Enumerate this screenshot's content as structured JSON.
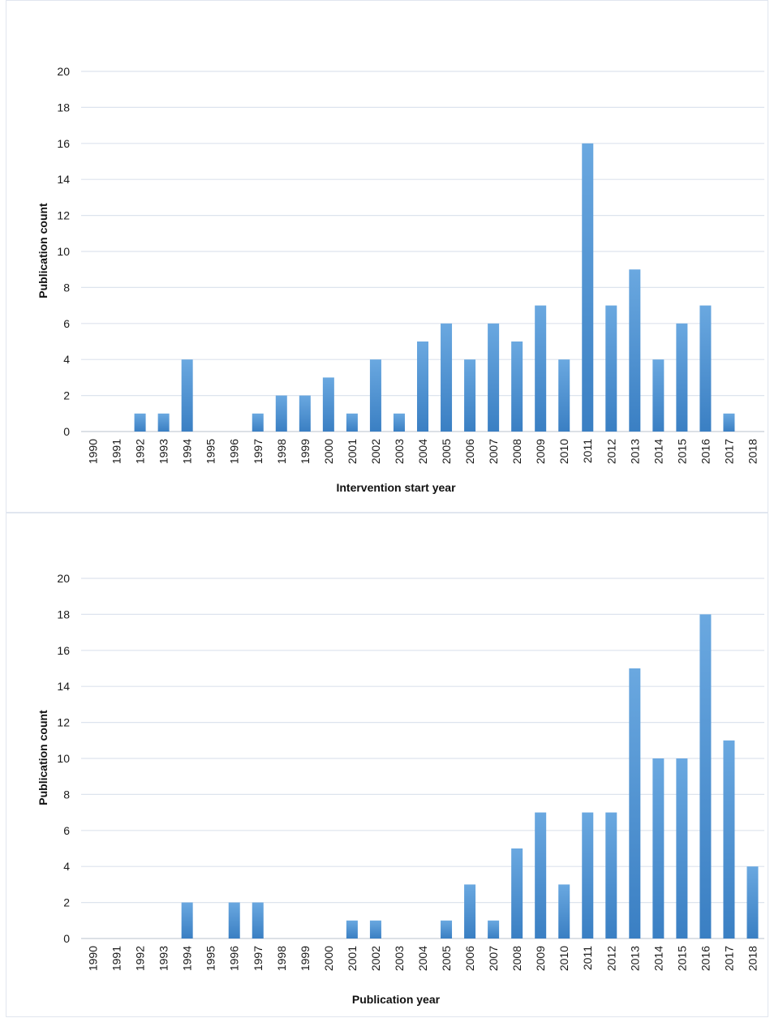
{
  "colors": {
    "bar": "#4a90d2",
    "bar_dark": "#3a7fc3",
    "grid": "#dde4ee",
    "axis": "#c8ced8"
  },
  "chart_data": [
    {
      "type": "bar",
      "title": "",
      "xlabel": "Intervention start year",
      "ylabel": "Publication count",
      "ylim": [
        0,
        20
      ],
      "yticks": [
        "0",
        "2",
        "4",
        "6",
        "8",
        "10",
        "12",
        "14",
        "16",
        "18",
        "20"
      ],
      "grid": true,
      "categories": [
        "1990",
        "1991",
        "1992",
        "1993",
        "1994",
        "1995",
        "1996",
        "1997",
        "1998",
        "1999",
        "2000",
        "2001",
        "2002",
        "2003",
        "2004",
        "2005",
        "2006",
        "2007",
        "2008",
        "2009",
        "2010",
        "2011",
        "2012",
        "2013",
        "2014",
        "2015",
        "2016",
        "2017",
        "2018"
      ],
      "values": [
        0,
        0,
        1,
        1,
        4,
        0,
        0,
        1,
        2,
        2,
        3,
        1,
        4,
        1,
        5,
        6,
        4,
        6,
        5,
        7,
        4,
        16,
        7,
        9,
        4,
        6,
        7,
        1,
        0
      ]
    },
    {
      "type": "bar",
      "title": "",
      "xlabel": "Publication year",
      "ylabel": "Publication count",
      "ylim": [
        0,
        20
      ],
      "yticks": [
        "0",
        "2",
        "4",
        "6",
        "8",
        "10",
        "12",
        "14",
        "16",
        "18",
        "20"
      ],
      "grid": true,
      "categories": [
        "1990",
        "1991",
        "1992",
        "1993",
        "1994",
        "1995",
        "1996",
        "1997",
        "1998",
        "1999",
        "2000",
        "2001",
        "2002",
        "2003",
        "2004",
        "2005",
        "2006",
        "2007",
        "2008",
        "2009",
        "2010",
        "2011",
        "2012",
        "2013",
        "2014",
        "2015",
        "2016",
        "2017",
        "2018"
      ],
      "values": [
        0,
        0,
        0,
        0,
        2,
        0,
        2,
        2,
        0,
        0,
        0,
        1,
        1,
        0,
        0,
        1,
        3,
        1,
        5,
        7,
        3,
        7,
        7,
        15,
        10,
        10,
        18,
        11,
        4
      ]
    }
  ]
}
